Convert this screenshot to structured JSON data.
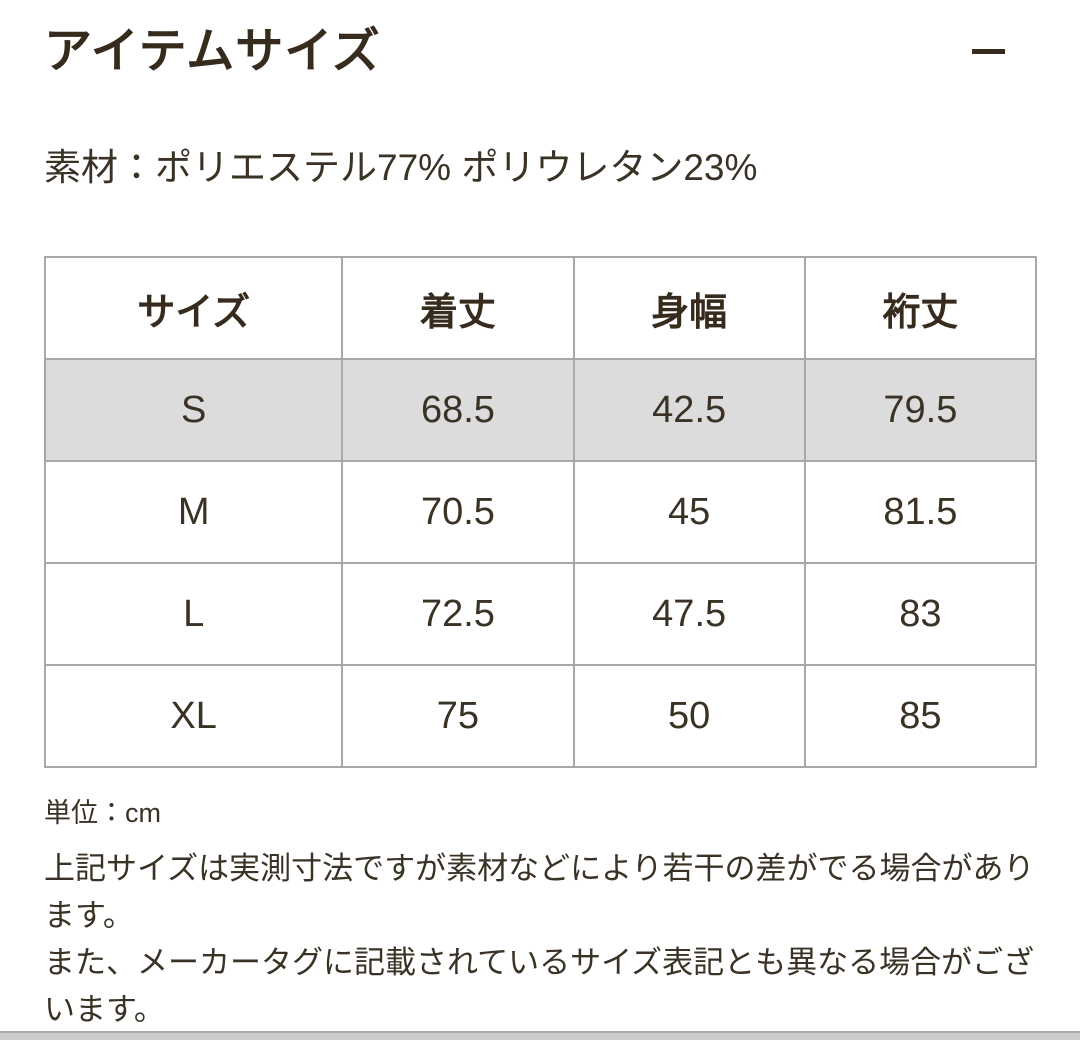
{
  "header": {
    "title": "アイテムサイズ",
    "collapse_icon": "minus-icon"
  },
  "material_line": "素材：ポリエステル77% ポリウレタン23%",
  "size_table": {
    "columns": [
      "サイズ",
      "着丈",
      "身幅",
      "裄丈"
    ],
    "rows": [
      {
        "cells": [
          "S",
          "68.5",
          "42.5",
          "79.5"
        ],
        "highlighted": true
      },
      {
        "cells": [
          "M",
          "70.5",
          "45",
          "81.5"
        ],
        "highlighted": false
      },
      {
        "cells": [
          "L",
          "72.5",
          "47.5",
          "83"
        ],
        "highlighted": false
      },
      {
        "cells": [
          "XL",
          "75",
          "50",
          "85"
        ],
        "highlighted": false
      }
    ]
  },
  "unit_label": "単位：cm",
  "notes": [
    "上記サイズは実測寸法ですが素材などにより若干の差がでる場合があります。",
    "また、メーカータグに記載されているサイズ表記とも異なる場合がございます。"
  ],
  "colors": {
    "text_primary": "#362b1c",
    "text_body": "#3b3226",
    "table_border": "#a8a8a8",
    "row_highlight_bg": "#dcdcdc",
    "section_divider": "#cccccc"
  }
}
